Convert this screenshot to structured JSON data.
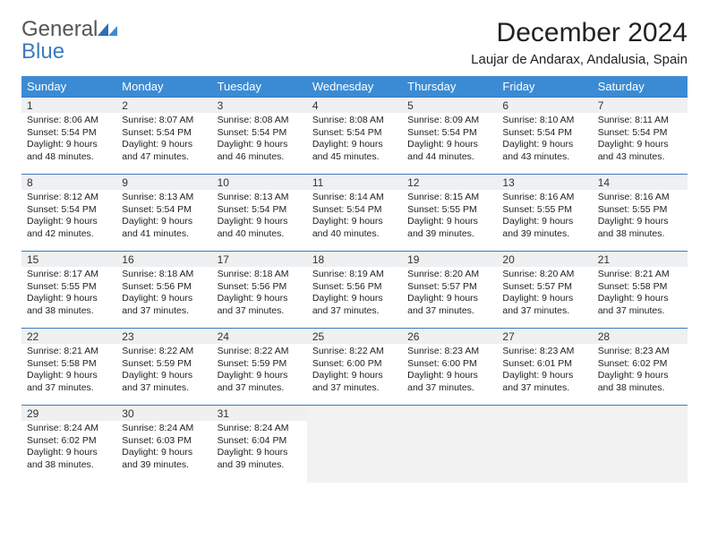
{
  "brand": {
    "general": "General",
    "blue": "Blue"
  },
  "title": "December 2024",
  "location": "Laujar de Andarax, Andalusia, Spain",
  "colors": {
    "header_bg": "#3b8bd4",
    "header_fg": "#ffffff",
    "row_divider": "#3b7bbf",
    "daynum_bg": "#eef0f2",
    "empty_bg": "#f2f2f2",
    "brand_gray": "#555555",
    "brand_blue": "#3b7bbf"
  },
  "weekday_labels": [
    "Sunday",
    "Monday",
    "Tuesday",
    "Wednesday",
    "Thursday",
    "Friday",
    "Saturday"
  ],
  "days": [
    {
      "n": 1,
      "sr": "8:06 AM",
      "ss": "5:54 PM",
      "dl": "9 hours and 48 minutes."
    },
    {
      "n": 2,
      "sr": "8:07 AM",
      "ss": "5:54 PM",
      "dl": "9 hours and 47 minutes."
    },
    {
      "n": 3,
      "sr": "8:08 AM",
      "ss": "5:54 PM",
      "dl": "9 hours and 46 minutes."
    },
    {
      "n": 4,
      "sr": "8:08 AM",
      "ss": "5:54 PM",
      "dl": "9 hours and 45 minutes."
    },
    {
      "n": 5,
      "sr": "8:09 AM",
      "ss": "5:54 PM",
      "dl": "9 hours and 44 minutes."
    },
    {
      "n": 6,
      "sr": "8:10 AM",
      "ss": "5:54 PM",
      "dl": "9 hours and 43 minutes."
    },
    {
      "n": 7,
      "sr": "8:11 AM",
      "ss": "5:54 PM",
      "dl": "9 hours and 43 minutes."
    },
    {
      "n": 8,
      "sr": "8:12 AM",
      "ss": "5:54 PM",
      "dl": "9 hours and 42 minutes."
    },
    {
      "n": 9,
      "sr": "8:13 AM",
      "ss": "5:54 PM",
      "dl": "9 hours and 41 minutes."
    },
    {
      "n": 10,
      "sr": "8:13 AM",
      "ss": "5:54 PM",
      "dl": "9 hours and 40 minutes."
    },
    {
      "n": 11,
      "sr": "8:14 AM",
      "ss": "5:54 PM",
      "dl": "9 hours and 40 minutes."
    },
    {
      "n": 12,
      "sr": "8:15 AM",
      "ss": "5:55 PM",
      "dl": "9 hours and 39 minutes."
    },
    {
      "n": 13,
      "sr": "8:16 AM",
      "ss": "5:55 PM",
      "dl": "9 hours and 39 minutes."
    },
    {
      "n": 14,
      "sr": "8:16 AM",
      "ss": "5:55 PM",
      "dl": "9 hours and 38 minutes."
    },
    {
      "n": 15,
      "sr": "8:17 AM",
      "ss": "5:55 PM",
      "dl": "9 hours and 38 minutes."
    },
    {
      "n": 16,
      "sr": "8:18 AM",
      "ss": "5:56 PM",
      "dl": "9 hours and 37 minutes."
    },
    {
      "n": 17,
      "sr": "8:18 AM",
      "ss": "5:56 PM",
      "dl": "9 hours and 37 minutes."
    },
    {
      "n": 18,
      "sr": "8:19 AM",
      "ss": "5:56 PM",
      "dl": "9 hours and 37 minutes."
    },
    {
      "n": 19,
      "sr": "8:20 AM",
      "ss": "5:57 PM",
      "dl": "9 hours and 37 minutes."
    },
    {
      "n": 20,
      "sr": "8:20 AM",
      "ss": "5:57 PM",
      "dl": "9 hours and 37 minutes."
    },
    {
      "n": 21,
      "sr": "8:21 AM",
      "ss": "5:58 PM",
      "dl": "9 hours and 37 minutes."
    },
    {
      "n": 22,
      "sr": "8:21 AM",
      "ss": "5:58 PM",
      "dl": "9 hours and 37 minutes."
    },
    {
      "n": 23,
      "sr": "8:22 AM",
      "ss": "5:59 PM",
      "dl": "9 hours and 37 minutes."
    },
    {
      "n": 24,
      "sr": "8:22 AM",
      "ss": "5:59 PM",
      "dl": "9 hours and 37 minutes."
    },
    {
      "n": 25,
      "sr": "8:22 AM",
      "ss": "6:00 PM",
      "dl": "9 hours and 37 minutes."
    },
    {
      "n": 26,
      "sr": "8:23 AM",
      "ss": "6:00 PM",
      "dl": "9 hours and 37 minutes."
    },
    {
      "n": 27,
      "sr": "8:23 AM",
      "ss": "6:01 PM",
      "dl": "9 hours and 37 minutes."
    },
    {
      "n": 28,
      "sr": "8:23 AM",
      "ss": "6:02 PM",
      "dl": "9 hours and 38 minutes."
    },
    {
      "n": 29,
      "sr": "8:24 AM",
      "ss": "6:02 PM",
      "dl": "9 hours and 38 minutes."
    },
    {
      "n": 30,
      "sr": "8:24 AM",
      "ss": "6:03 PM",
      "dl": "9 hours and 39 minutes."
    },
    {
      "n": 31,
      "sr": "8:24 AM",
      "ss": "6:04 PM",
      "dl": "9 hours and 39 minutes."
    }
  ],
  "labels": {
    "sunrise": "Sunrise:",
    "sunset": "Sunset:",
    "daylight": "Daylight:"
  },
  "layout": {
    "start_weekday": 0,
    "weeks": 5,
    "cols": 7
  }
}
